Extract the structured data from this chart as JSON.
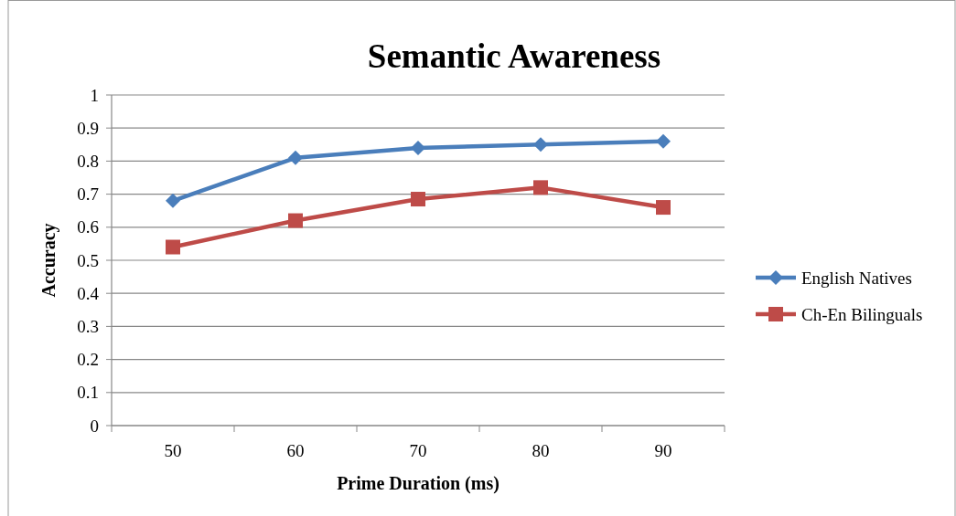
{
  "chart_data": {
    "type": "line",
    "title": "Semantic Awareness",
    "xlabel": "Prime Duration (ms)",
    "ylabel": "Accuracy",
    "categories": [
      "50",
      "60",
      "70",
      "80",
      "90"
    ],
    "series": [
      {
        "name": "English Natives",
        "color": "#4a7ebb",
        "marker": "diamond",
        "values": [
          0.68,
          0.81,
          0.84,
          0.85,
          0.86
        ]
      },
      {
        "name": "Ch-En Bilinguals",
        "color": "#be4b48",
        "marker": "square",
        "values": [
          0.54,
          0.62,
          0.685,
          0.72,
          0.66
        ]
      }
    ],
    "ylim": [
      0,
      1
    ],
    "yticks": [
      0,
      0.1,
      0.2,
      0.3,
      0.4,
      0.5,
      0.6,
      0.7,
      0.8,
      0.9,
      1
    ],
    "grid": "y",
    "legend": "right"
  }
}
